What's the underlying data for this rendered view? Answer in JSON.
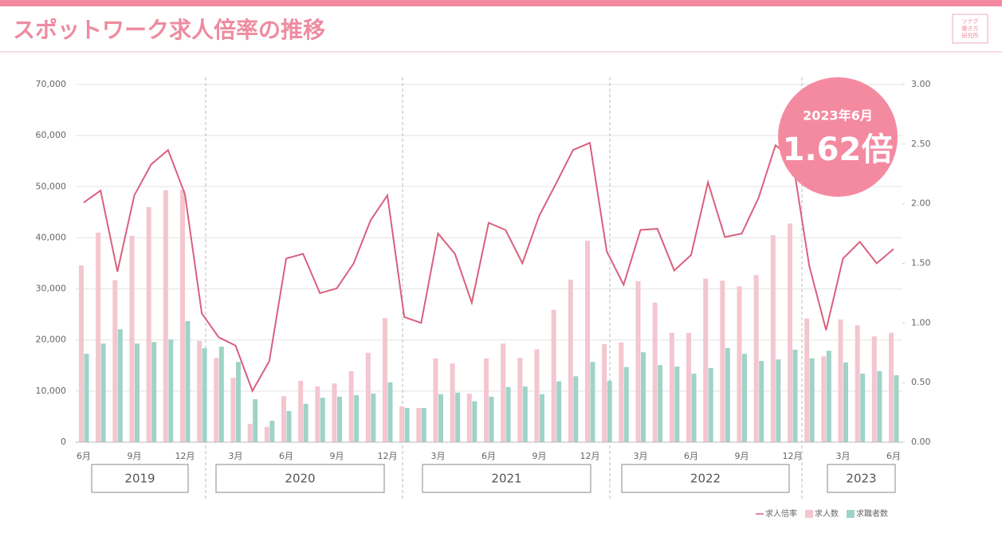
{
  "header": {
    "title": "スポットワーク求人倍率の推移",
    "logo": [
      "ツナグ",
      "働き方",
      "研究所"
    ]
  },
  "chart_data": {
    "type": "bar",
    "categories": [
      "6月",
      null,
      null,
      "9月",
      null,
      null,
      "12月",
      null,
      null,
      "3月",
      null,
      null,
      "6月",
      null,
      null,
      "9月",
      null,
      null,
      "12月",
      null,
      null,
      "3月",
      null,
      null,
      "6月",
      null,
      null,
      "9月",
      null,
      null,
      "12月",
      null,
      null,
      "3月",
      null,
      null,
      "6月",
      null,
      null,
      "9月",
      null,
      null,
      "12月",
      null,
      null,
      "3月",
      null,
      null,
      "6月"
    ],
    "year_labels": [
      "2019",
      "2020",
      "2021",
      "2022",
      "2023"
    ],
    "series": [
      {
        "name": "求人倍率",
        "type": "line",
        "axis": "y2",
        "color": "#d9607e",
        "values": [
          2.01,
          2.11,
          1.43,
          2.07,
          2.33,
          2.45,
          2.08,
          1.08,
          0.88,
          0.81,
          0.43,
          0.68,
          1.54,
          1.58,
          1.25,
          1.29,
          1.5,
          1.86,
          2.07,
          1.05,
          1.0,
          1.75,
          1.58,
          1.17,
          1.84,
          1.78,
          1.5,
          1.9,
          2.17,
          2.45,
          2.51,
          1.6,
          1.32,
          1.78,
          1.79,
          1.44,
          1.57,
          2.18,
          1.72,
          1.75,
          2.05,
          2.49,
          2.38,
          1.48,
          0.94,
          1.54,
          1.68,
          1.5,
          1.62
        ]
      },
      {
        "name": "求人数",
        "type": "bar",
        "color": "#f4c6cf",
        "values": [
          34600,
          41000,
          31700,
          40400,
          46000,
          49300,
          49400,
          19800,
          16500,
          12600,
          3600,
          3000,
          9000,
          12000,
          10900,
          11500,
          13900,
          17500,
          24300,
          7000,
          6700,
          16400,
          15400,
          9500,
          16400,
          19300,
          16500,
          18200,
          25900,
          31800,
          39400,
          19200,
          19500,
          31500,
          27300,
          21400,
          21400,
          32000,
          31600,
          30500,
          32700,
          40500,
          42800,
          24200,
          16800,
          24000,
          22900,
          20700,
          21400
        ]
      },
      {
        "name": "求職者数",
        "type": "bar",
        "color": "#9fd3c7",
        "values": [
          17300,
          19300,
          22100,
          19300,
          19600,
          20100,
          23700,
          18400,
          18700,
          15700,
          8400,
          4200,
          6100,
          7500,
          8700,
          8900,
          9200,
          9500,
          11700,
          6700,
          6700,
          9400,
          9700,
          8000,
          8900,
          10800,
          10900,
          9400,
          11900,
          12900,
          15700,
          12000,
          14700,
          17600,
          15100,
          14800,
          13400,
          14500,
          18400,
          17300,
          15900,
          16200,
          18100,
          16400,
          17900,
          15600,
          13400,
          13900,
          13100
        ]
      }
    ],
    "ylim": [
      0,
      70000
    ],
    "yticks": [
      0,
      {
        "value": 10000,
        "label": "10,000"
      },
      {
        "value": 20000,
        "label": "20,000"
      },
      {
        "value": 30000,
        "label": "30,000"
      },
      {
        "value": 40000,
        "label": "40,000"
      },
      {
        "value": 50000,
        "label": "50,000"
      },
      {
        "value": 60000,
        "label": "60,000"
      },
      {
        "value": 70000,
        "label": "70,000"
      }
    ],
    "y2lim": [
      0,
      3
    ],
    "y2ticks": [
      {
        "value": 0,
        "label": "0.00"
      },
      {
        "value": 0.5,
        "label": "0.50"
      },
      {
        "value": 1,
        "label": "1.00"
      },
      {
        "value": 1.5,
        "label": "1.50"
      },
      {
        "value": 2,
        "label": "2.00"
      },
      {
        "value": 2.5,
        "label": "2.50"
      },
      {
        "value": 3,
        "label": "3.00"
      }
    ],
    "grid": true,
    "legend": "bottom-right",
    "annotation": {
      "date": "2023年6月",
      "value": "1.62倍"
    }
  }
}
